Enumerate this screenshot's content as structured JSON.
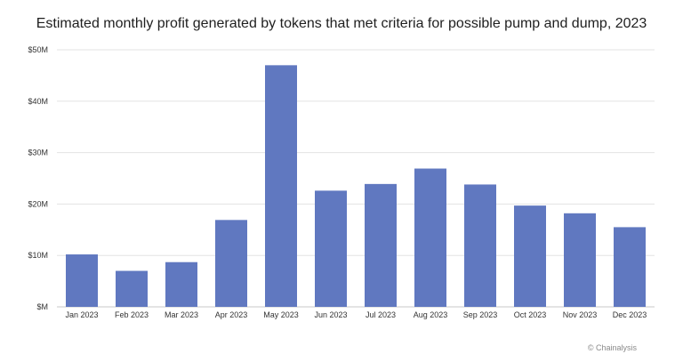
{
  "chart_data": {
    "type": "bar",
    "title": "Estimated monthly profit generated by tokens that met criteria for possible pump and dump, 2023",
    "xlabel": "",
    "ylabel": "",
    "categories": [
      "Jan 2023",
      "Feb 2023",
      "Mar 2023",
      "Apr 2023",
      "May 2023",
      "Jun 2023",
      "Jul 2023",
      "Aug 2023",
      "Sep 2023",
      "Oct 2023",
      "Nov 2023",
      "Dec 2023"
    ],
    "values": [
      10.2,
      7.0,
      8.7,
      16.9,
      47.0,
      22.6,
      23.9,
      26.9,
      23.8,
      19.7,
      18.2,
      15.5
    ],
    "value_unit": "$M",
    "ylim": [
      0,
      50
    ],
    "yticks": [
      0,
      10,
      20,
      30,
      40,
      50
    ],
    "ytick_labels": [
      "$M",
      "$10M",
      "$20M",
      "$30M",
      "$40M",
      "$50M"
    ],
    "grid": true,
    "bar_color": "#6078c0",
    "grid_color": "#e3e3e3"
  },
  "credit": "© Chainalysis"
}
